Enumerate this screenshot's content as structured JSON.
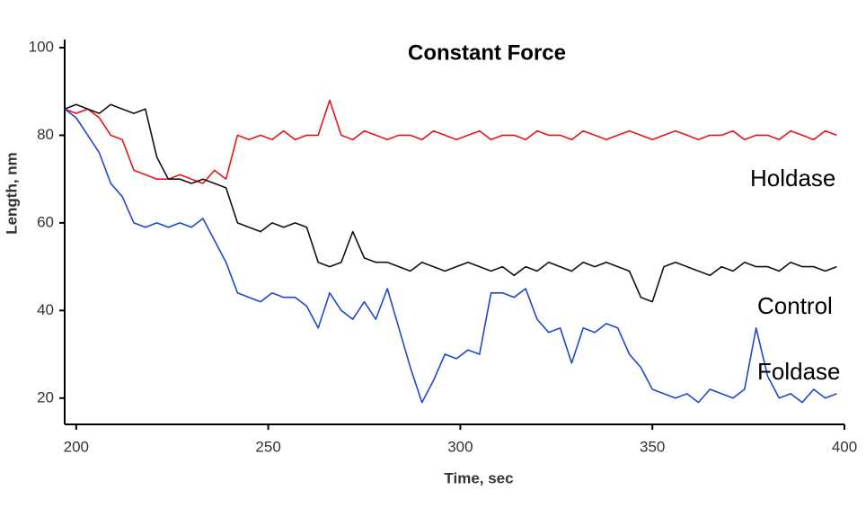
{
  "chart_data": {
    "type": "line",
    "title": "Constant Force",
    "xlabel": "Time, sec",
    "ylabel": "Length, nm",
    "x": [
      197,
      200,
      203,
      206,
      209,
      212,
      215,
      218,
      221,
      224,
      227,
      230,
      233,
      236,
      239,
      242,
      245,
      248,
      251,
      254,
      257,
      260,
      263,
      266,
      269,
      272,
      275,
      278,
      281,
      284,
      287,
      290,
      293,
      296,
      299,
      302,
      305,
      308,
      311,
      314,
      317,
      320,
      323,
      326,
      329,
      332,
      335,
      338,
      341,
      344,
      347,
      350,
      353,
      356,
      359,
      362,
      365,
      368,
      371,
      374,
      377,
      380,
      383,
      386,
      389,
      392,
      395,
      398
    ],
    "series": [
      {
        "name": "Holdase",
        "color": "#e8141a",
        "values": [
          86,
          85,
          86,
          84,
          80,
          79,
          72,
          71,
          70,
          70,
          71,
          70,
          69,
          72,
          70,
          80,
          79,
          80,
          79,
          81,
          79,
          80,
          80,
          88,
          80,
          79,
          81,
          80,
          79,
          80,
          80,
          79,
          81,
          80,
          79,
          80,
          81,
          79,
          80,
          80,
          79,
          81,
          80,
          80,
          79,
          81,
          80,
          79,
          80,
          81,
          80,
          79,
          80,
          81,
          80,
          79,
          80,
          80,
          81,
          79,
          80,
          80,
          79,
          81,
          80,
          79,
          81,
          80
        ]
      },
      {
        "name": "Control",
        "color": "#111111",
        "values": [
          86,
          87,
          86,
          85,
          87,
          86,
          85,
          86,
          75,
          70,
          70,
          69,
          70,
          69,
          68,
          60,
          59,
          58,
          60,
          59,
          60,
          59,
          51,
          50,
          51,
          58,
          52,
          51,
          51,
          50,
          49,
          51,
          50,
          49,
          50,
          51,
          50,
          49,
          50,
          48,
          50,
          49,
          51,
          50,
          49,
          51,
          50,
          51,
          50,
          49,
          43,
          42,
          50,
          51,
          50,
          49,
          48,
          50,
          49,
          51,
          50,
          50,
          49,
          51,
          50,
          50,
          49,
          50
        ]
      },
      {
        "name": "Foldase",
        "color": "#1f47c8",
        "values": [
          86,
          84,
          80,
          76,
          69,
          66,
          60,
          59,
          60,
          59,
          60,
          59,
          61,
          56,
          51,
          44,
          43,
          42,
          44,
          43,
          43,
          41,
          36,
          44,
          40,
          38,
          42,
          38,
          45,
          36,
          27,
          19,
          24,
          30,
          29,
          31,
          30,
          44,
          44,
          43,
          45,
          38,
          35,
          36,
          28,
          36,
          35,
          37,
          36,
          30,
          27,
          22,
          21,
          20,
          21,
          19,
          22,
          21,
          20,
          22,
          36,
          25,
          20,
          21,
          19,
          22,
          20,
          21
        ]
      }
    ],
    "xlim": [
      197,
      400
    ],
    "xticks": [
      200,
      250,
      300,
      350,
      400
    ],
    "ylim": [
      14,
      100
    ],
    "yticks": [
      20,
      40,
      60,
      80,
      100
    ]
  }
}
